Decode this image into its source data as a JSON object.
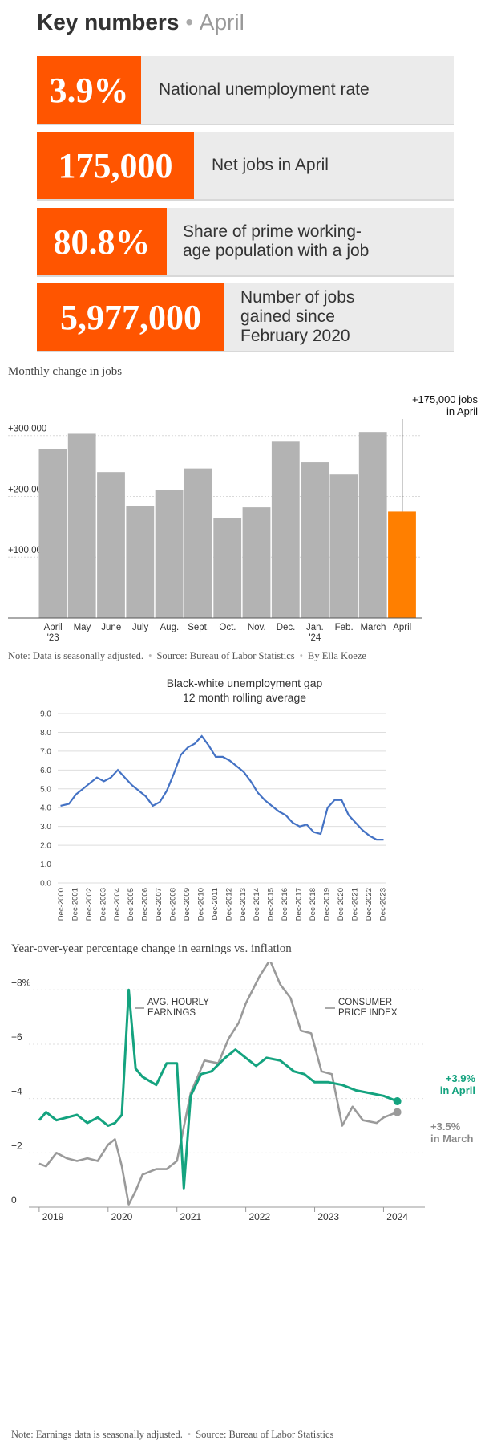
{
  "key_numbers": {
    "title": "Key numbers",
    "dot": "•",
    "month": "April",
    "cards": [
      {
        "value": "3.9%",
        "label": "National unemployment rate"
      },
      {
        "value": "175,000",
        "label": "Net jobs in April"
      },
      {
        "value": "80.8%",
        "label": "Share of prime working-\nage population with a job"
      },
      {
        "value": "5,977,000",
        "label": "Number of jobs\ngained since\nFebruary 2020"
      }
    ]
  },
  "jobs_chart": {
    "title": "Monthly change in jobs",
    "annotation_line1": "+175,000 jobs",
    "annotation_line2": "in April",
    "note": "Note: Data is seasonally adjusted.",
    "source": "Source: Bureau of Labor Statistics",
    "byline": "By Ella Koeze",
    "sep": "•"
  },
  "gap_chart": {
    "title_line1": "Black-white unemployment gap",
    "title_line2": "12 month rolling average"
  },
  "earnings_chart": {
    "title": "Year-over-year percentage change in earnings vs. inflation",
    "earnings_label_line1": "AVG. HOURLY",
    "earnings_label_line2": "EARNINGS",
    "cpi_label_line1": "CONSUMER",
    "cpi_label_line2": "PRICE INDEX",
    "april_value": "+3.9%",
    "april_label": "in April",
    "march_value": "+3.5%",
    "march_label": "in March",
    "note": "Note: Earnings data is seasonally adjusted.",
    "source": "Source: Bureau of Labor Statistics",
    "sep": "•"
  },
  "colors": {
    "orange": "#ff5500",
    "bar_gray": "#b3b3b3",
    "bar_highlight": "#ff7f00",
    "gap_line": "#4472c4",
    "earnings_green": "#14a37f",
    "cpi_gray": "#9a9a9a"
  },
  "chart_data": [
    {
      "type": "bar",
      "title": "Monthly change in jobs",
      "categories": [
        "April '23",
        "May",
        "June",
        "July",
        "Aug.",
        "Sept.",
        "Oct.",
        "Nov.",
        "Dec.",
        "Jan. '24",
        "Feb.",
        "March",
        "April"
      ],
      "category_lines": [
        [
          "April",
          "'23"
        ],
        [
          "May"
        ],
        [
          "June"
        ],
        [
          "July"
        ],
        [
          "Aug."
        ],
        [
          "Sept."
        ],
        [
          "Oct."
        ],
        [
          "Nov."
        ],
        [
          "Dec."
        ],
        [
          "Jan.",
          "'24"
        ],
        [
          "Feb."
        ],
        [
          "March"
        ],
        [
          "April"
        ]
      ],
      "values": [
        278000,
        303000,
        240000,
        184000,
        210000,
        246000,
        165000,
        182000,
        290000,
        256000,
        236000,
        306000,
        175000
      ],
      "highlight_index": 12,
      "yticks": [
        100000,
        200000,
        300000
      ],
      "ytick_labels": [
        "+100,000",
        "+200,000",
        "+300,000"
      ],
      "ylim": [
        0,
        330000
      ]
    },
    {
      "type": "line",
      "title": "Black-white unemployment gap",
      "subtitle": "12 month rolling average",
      "x_labels": [
        "Dec-2000",
        "Dec-2001",
        "Dec-2002",
        "Dec-2003",
        "Dec-2004",
        "Dec-2005",
        "Dec-2006",
        "Dec-2007",
        "Dec-2008",
        "Dec-2009",
        "Dec-2010",
        "Dec-2011",
        "Dec-2012",
        "Dec-2013",
        "Dec-2014",
        "Dec-2015",
        "Dec-2016",
        "Dec-2017",
        "Dec-2018",
        "Dec-2019",
        "Dec-2020",
        "Dec-2021",
        "Dec-2022",
        "Dec-2023"
      ],
      "x": [
        2000.9,
        2001.5,
        2002.0,
        2002.5,
        2003.0,
        2003.5,
        2004.0,
        2004.5,
        2005.0,
        2005.5,
        2006.0,
        2006.5,
        2007.0,
        2007.5,
        2008.0,
        2008.5,
        2009.0,
        2009.5,
        2010.0,
        2010.5,
        2011.0,
        2011.5,
        2012.0,
        2012.5,
        2013.0,
        2013.5,
        2014.0,
        2014.5,
        2015.0,
        2015.5,
        2016.0,
        2016.5,
        2017.0,
        2017.5,
        2018.0,
        2018.5,
        2019.0,
        2019.5,
        2020.0,
        2020.5,
        2021.0,
        2021.5,
        2022.0,
        2022.5,
        2023.0,
        2023.5,
        2024.0
      ],
      "y": [
        4.1,
        4.2,
        4.7,
        5.0,
        5.3,
        5.6,
        5.4,
        5.6,
        6.0,
        5.6,
        5.2,
        4.9,
        4.6,
        4.1,
        4.3,
        4.9,
        5.8,
        6.8,
        7.2,
        7.4,
        7.8,
        7.3,
        6.7,
        6.7,
        6.5,
        6.2,
        5.9,
        5.4,
        4.8,
        4.4,
        4.1,
        3.8,
        3.6,
        3.2,
        3.0,
        3.1,
        2.7,
        2.6,
        4.0,
        4.4,
        4.4,
        3.6,
        3.2,
        2.8,
        2.5,
        2.3,
        2.3
      ],
      "yticks": [
        0.0,
        1.0,
        2.0,
        3.0,
        4.0,
        5.0,
        6.0,
        7.0,
        8.0,
        9.0
      ],
      "ytick_labels": [
        "0.0",
        "1.0",
        "2.0",
        "3.0",
        "4.0",
        "5.0",
        "6.0",
        "7.0",
        "8.0",
        "9.0"
      ],
      "ylim": [
        0,
        9
      ],
      "grid": true
    },
    {
      "type": "line",
      "title": "Year-over-year percentage change in earnings vs. inflation",
      "x_labels": [
        "2019",
        "2020",
        "2021",
        "2022",
        "2023",
        "2024"
      ],
      "yticks": [
        0,
        2,
        4,
        6,
        8
      ],
      "ytick_labels": [
        "0",
        "+2",
        "+4",
        "+6",
        "+8%"
      ],
      "ylim": [
        0,
        8.6
      ],
      "series": [
        {
          "name": "AVG. HOURLY EARNINGS",
          "x": [
            2019.0,
            2019.1,
            2019.25,
            2019.4,
            2019.55,
            2019.7,
            2019.85,
            2020.0,
            2020.1,
            2020.2,
            2020.3,
            2020.4,
            2020.5,
            2020.7,
            2020.85,
            2021.0,
            2021.1,
            2021.2,
            2021.35,
            2021.5,
            2021.7,
            2021.85,
            2022.0,
            2022.15,
            2022.3,
            2022.5,
            2022.7,
            2022.85,
            2023.0,
            2023.2,
            2023.4,
            2023.6,
            2023.8,
            2024.0,
            2024.2
          ],
          "y": [
            3.2,
            3.5,
            3.2,
            3.3,
            3.4,
            3.1,
            3.3,
            3.0,
            3.1,
            3.4,
            8.0,
            5.1,
            4.8,
            4.5,
            5.3,
            5.3,
            0.7,
            4.1,
            4.9,
            5.0,
            5.5,
            5.8,
            5.5,
            5.2,
            5.5,
            5.4,
            5.0,
            4.9,
            4.6,
            4.6,
            4.5,
            4.3,
            4.2,
            4.1,
            3.9
          ]
        },
        {
          "name": "CONSUMER PRICE INDEX",
          "x": [
            2019.0,
            2019.1,
            2019.25,
            2019.4,
            2019.55,
            2019.7,
            2019.85,
            2020.0,
            2020.1,
            2020.2,
            2020.3,
            2020.4,
            2020.5,
            2020.7,
            2020.85,
            2021.0,
            2021.2,
            2021.4,
            2021.6,
            2021.75,
            2021.9,
            2022.0,
            2022.2,
            2022.35,
            2022.5,
            2022.65,
            2022.8,
            2022.95,
            2023.1,
            2023.25,
            2023.4,
            2023.55,
            2023.7,
            2023.9,
            2024.0,
            2024.2
          ],
          "y": [
            1.6,
            1.5,
            2.0,
            1.8,
            1.7,
            1.8,
            1.7,
            2.3,
            2.5,
            1.5,
            0.1,
            0.6,
            1.2,
            1.4,
            1.4,
            1.7,
            4.2,
            5.4,
            5.3,
            6.2,
            6.8,
            7.5,
            8.5,
            9.1,
            8.2,
            7.7,
            6.5,
            6.4,
            5.0,
            4.9,
            3.0,
            3.7,
            3.2,
            3.1,
            3.3,
            3.5
          ]
        }
      ]
    }
  ]
}
